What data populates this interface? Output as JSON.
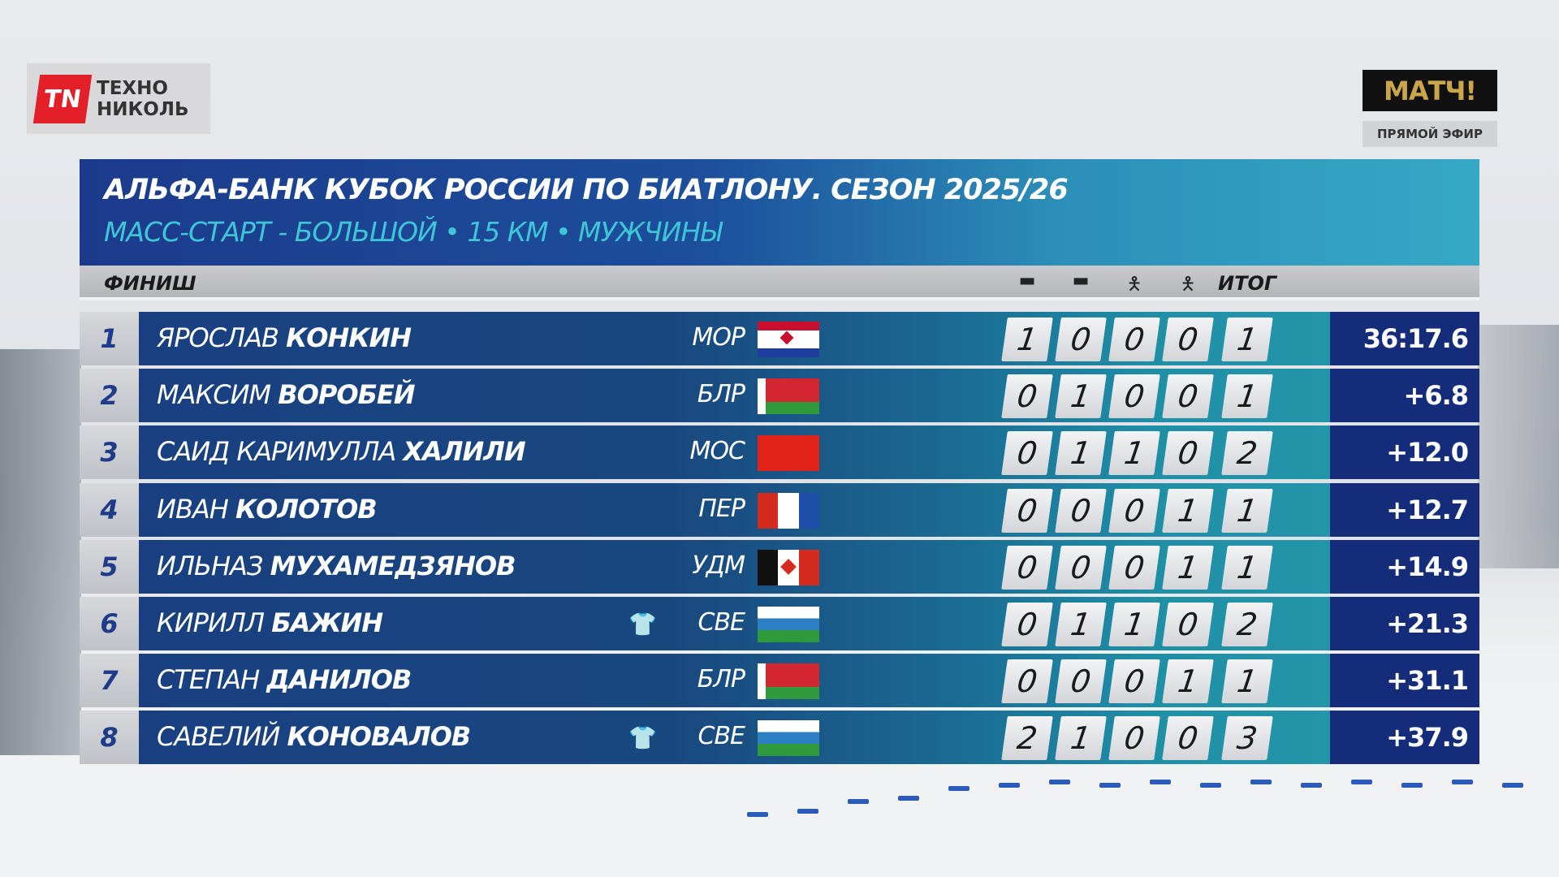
{
  "sponsor": {
    "logo_text": "TN",
    "name_line1": "ТЕХНО",
    "name_line2": "НИКОЛЬ"
  },
  "broadcaster": {
    "logo": "МАТЧ!",
    "live_label": "ПРЯМОЙ ЭФИР"
  },
  "header": {
    "title": "АЛЬФА-БАНК КУБОК РОССИИ ПО БИАТЛОНУ. СЕЗОН 2025/26",
    "subtitle": "МАСС-СТАРТ - БОЛЬШОЙ • 15 КМ • МУЖЧИНЫ"
  },
  "columns": {
    "finish_label": "ФИНИШ",
    "shooting_icons": [
      "prone-icon",
      "prone-icon",
      "standing-icon",
      "standing-icon"
    ],
    "total_label": "ИТОГ"
  },
  "colors": {
    "rank_text": "#1f3c8a",
    "row_blue": "#193f80",
    "row_teal": "#2395a9",
    "time_bg": "#142c7a"
  },
  "results": [
    {
      "rank": "1",
      "first": "ЯРОСЛАВ",
      "last": "КОНКИН",
      "country": "МОР",
      "flag": "mordovia",
      "kit": "",
      "shots": [
        "1",
        "0",
        "0",
        "0"
      ],
      "total": "1",
      "time": "36:17.6"
    },
    {
      "rank": "2",
      "first": "МАКСИМ",
      "last": "ВОРОБЕЙ",
      "country": "БЛР",
      "flag": "belarus",
      "kit": "",
      "shots": [
        "0",
        "1",
        "0",
        "0"
      ],
      "total": "1",
      "time": "+6.8"
    },
    {
      "rank": "3",
      "first": "САИД КАРИМУЛЛА",
      "last": "ХАЛИЛИ",
      "country": "МОС",
      "flag": "moscow",
      "kit": "",
      "shots": [
        "0",
        "1",
        "1",
        "0"
      ],
      "total": "2",
      "time": "+12.0"
    },
    {
      "rank": "4",
      "first": "ИВАН",
      "last": "КОЛОТОВ",
      "country": "ПЕР",
      "flag": "perm",
      "kit": "",
      "shots": [
        "0",
        "0",
        "0",
        "1"
      ],
      "total": "1",
      "time": "+12.7"
    },
    {
      "rank": "5",
      "first": "ИЛЬНАЗ",
      "last": "МУХАМЕДЗЯНОВ",
      "country": "УДМ",
      "flag": "udmurtia",
      "kit": "",
      "shots": [
        "0",
        "0",
        "0",
        "1"
      ],
      "total": "1",
      "time": "+14.9"
    },
    {
      "rank": "6",
      "first": "КИРИЛЛ",
      "last": "БАЖИН",
      "country": "СВЕ",
      "flag": "sverdlovsk",
      "kit": "yellow-red",
      "shots": [
        "0",
        "1",
        "1",
        "0"
      ],
      "total": "2",
      "time": "+21.3"
    },
    {
      "rank": "7",
      "first": "СТЕПАН",
      "last": "ДАНИЛОВ",
      "country": "БЛР",
      "flag": "belarus",
      "kit": "",
      "shots": [
        "0",
        "0",
        "0",
        "1"
      ],
      "total": "1",
      "time": "+31.1"
    },
    {
      "rank": "8",
      "first": "САВЕЛИЙ",
      "last": "КОНОВАЛОВ",
      "country": "СВЕ",
      "flag": "sverdlovsk",
      "kit": "blue",
      "shots": [
        "2",
        "1",
        "0",
        "0"
      ],
      "total": "3",
      "time": "+37.9"
    }
  ]
}
